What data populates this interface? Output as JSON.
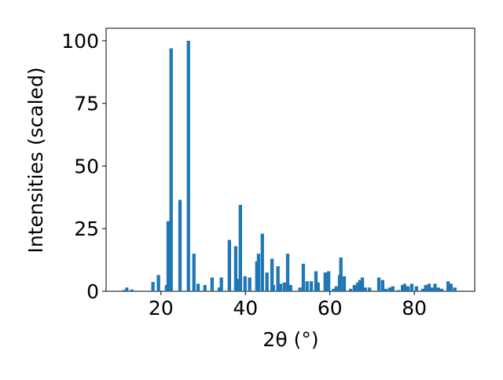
{
  "chart_data": {
    "type": "bar",
    "xlabel": "2θ (°)",
    "ylabel": "Intensities (scaled)",
    "x": [
      11.2,
      11.9,
      13.1,
      18.1,
      19.4,
      21.3,
      21.7,
      22.4,
      24.5,
      26.5,
      27.8,
      28.8,
      30.4,
      32.1,
      33.8,
      34.3,
      36.2,
      37.7,
      38.4,
      38.8,
      39.9,
      41.0,
      42.7,
      43.1,
      44.0,
      45.1,
      46.3,
      46.6,
      47.7,
      48.3,
      49.2,
      50.0,
      50.7,
      52.9,
      53.7,
      54.6,
      55.6,
      56.7,
      57.2,
      58.9,
      59.7,
      60.9,
      61.5,
      62.3,
      62.6,
      63.4,
      64.9,
      65.8,
      66.6,
      67.1,
      67.7,
      68.4,
      69.4,
      71.6,
      72.5,
      73.3,
      74.2,
      74.9,
      76.2,
      77.2,
      77.7,
      78.5,
      79.4,
      80.5,
      82.0,
      82.7,
      83.5,
      84.2,
      84.9,
      85.7,
      86.5,
      88.0,
      88.7,
      89.6
    ],
    "values": [
      0.5,
      1.5,
      0.7,
      3.7,
      6.5,
      2.5,
      28,
      97,
      36.5,
      100,
      15,
      3,
      2.5,
      5.5,
      1.5,
      5.5,
      20.5,
      18,
      5,
      34.5,
      6,
      5.5,
      12,
      15,
      23,
      7.5,
      13,
      2.5,
      10,
      3,
      3.5,
      15,
      2.5,
      1.5,
      11,
      4,
      4,
      8,
      3.5,
      7.5,
      8,
      1,
      2,
      6.5,
      13.5,
      6,
      1,
      2.5,
      3.5,
      4.5,
      5.5,
      1.5,
      1.5,
      5.5,
      4.5,
      1,
      1.5,
      2,
      0.5,
      2.5,
      3,
      2,
      3,
      2,
      1,
      2.5,
      3,
      1.5,
      3,
      1.5,
      1,
      4,
      3,
      1.5
    ],
    "color": "#1f77b4",
    "xlim": [
      7,
      94.3
    ],
    "ylim": [
      0,
      105
    ],
    "xticks": [
      20,
      40,
      60,
      80
    ],
    "yticks": [
      0,
      25,
      50,
      75,
      100
    ]
  }
}
